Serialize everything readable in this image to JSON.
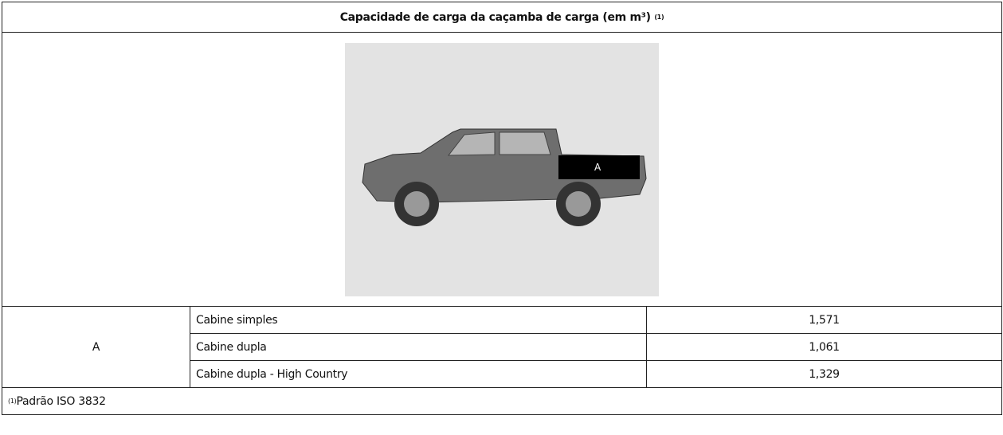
{
  "header": {
    "title": "Capacidade de carga da caçamba de carga (em m³)",
    "title_note": "(1)"
  },
  "figure": {
    "label": "A"
  },
  "table": {
    "group": "A",
    "rows": [
      [
        "Cabine simples",
        "1,571"
      ],
      [
        "Cabine dupla",
        "1,061"
      ],
      [
        "Cabine dupla - High Country",
        "1,329"
      ]
    ]
  },
  "footnote": {
    "mark": "(1)",
    "text": "Padrão ISO 3832"
  }
}
